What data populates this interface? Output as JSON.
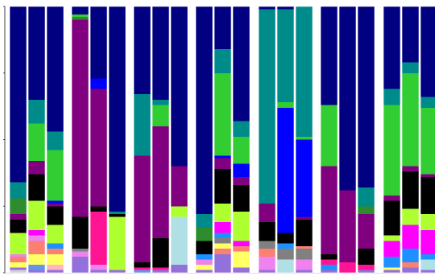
{
  "chart_data": {
    "type": "bar",
    "stacked": true,
    "normalized": true,
    "ylim": [
      0,
      1
    ],
    "grid": false,
    "legend": "none",
    "segment_order": [
      "lavender",
      "lightgray",
      "blue-light",
      "pink",
      "violet",
      "salmon",
      "yellow",
      "gray",
      "powderblue",
      "deeppink",
      "magenta",
      "dodgerblue",
      "greenyellow",
      "black",
      "purple",
      "green",
      "lime-green",
      "blue",
      "teal",
      "navy"
    ],
    "colors": {
      "navy": "#000080",
      "teal": "#008b8b",
      "lime-green": "#32cd32",
      "green": "#2e8b2e",
      "purple": "#800080",
      "black": "#000000",
      "greenyellow": "#adff2f",
      "blue": "#0000ff",
      "magenta": "#ff00ff",
      "deeppink": "#ff1493",
      "dodgerblue": "#1e90ff",
      "salmon": "#fa8072",
      "yellow": "#ffff66",
      "violet": "#ee82ee",
      "powderblue": "#b0e0e6",
      "gray": "#808080",
      "pink": "#ffb6c1",
      "lavender": "#9370db",
      "lightgray": "#d3d3d3",
      "blue-light": "#6495ed"
    },
    "groups": [
      {
        "bars": [
          [
            [
              "lightgray",
              0.01
            ],
            [
              "lavender",
              0.01
            ],
            [
              "yellow",
              0.02
            ],
            [
              "salmon",
              0.02
            ],
            [
              "violet",
              0.01
            ],
            [
              "greenyellow",
              0.08
            ],
            [
              "black",
              0.05
            ],
            [
              "purple",
              0.02
            ],
            [
              "green",
              0.06
            ],
            [
              "teal",
              0.06
            ],
            [
              "navy",
              0.66
            ]
          ],
          [
            [
              "lavender",
              0.01
            ],
            [
              "blue-light",
              0.02
            ],
            [
              "yellow",
              0.04
            ],
            [
              "salmon",
              0.05
            ],
            [
              "violet",
              0.02
            ],
            [
              "magenta",
              0.02
            ],
            [
              "greenyellow",
              0.11
            ],
            [
              "black",
              0.1
            ],
            [
              "purple",
              0.05
            ],
            [
              "lime-green",
              0.14
            ],
            [
              "teal",
              0.09
            ],
            [
              "navy",
              0.35
            ]
          ],
          [
            [
              "lavender",
              0.01
            ],
            [
              "pink",
              0.02
            ],
            [
              "yellow",
              0.04
            ],
            [
              "salmon",
              0.02
            ],
            [
              "dodgerblue",
              0.02
            ],
            [
              "greenyellow",
              0.07
            ],
            [
              "black",
              0.07
            ],
            [
              "purple",
              0.01
            ],
            [
              "blue",
              0.01
            ],
            [
              "lime-green",
              0.19
            ],
            [
              "teal",
              0.07
            ],
            [
              "navy",
              0.47
            ]
          ]
        ]
      },
      {
        "bars": [
          [
            [
              "lavender",
              0.06
            ],
            [
              "violet",
              0.02
            ],
            [
              "gray",
              0.01
            ],
            [
              "black",
              0.12
            ],
            [
              "purple",
              0.74
            ],
            [
              "green",
              0.01
            ],
            [
              "lime-green",
              0.01
            ],
            [
              "navy",
              0.03
            ]
          ],
          [
            [
              "lavender",
              0.01
            ],
            [
              "violet",
              0.02
            ],
            [
              "deeppink",
              0.2
            ],
            [
              "black",
              0.02
            ],
            [
              "purple",
              0.44
            ],
            [
              "blue",
              0.04
            ],
            [
              "navy",
              0.27
            ]
          ],
          [
            [
              "lavender",
              0.01
            ],
            [
              "greenyellow",
              0.2
            ],
            [
              "black",
              0.01
            ],
            [
              "teal",
              0.01
            ],
            [
              "navy",
              0.77
            ]
          ]
        ]
      },
      {
        "bars": [
          [
            [
              "blue-light",
              0.01
            ],
            [
              "deeppink",
              0.01
            ],
            [
              "black",
              0.02
            ],
            [
              "purple",
              0.4
            ],
            [
              "teal",
              0.23
            ],
            [
              "navy",
              0.33
            ]
          ],
          [
            [
              "lavender",
              0.01
            ],
            [
              "deeppink",
              0.01
            ],
            [
              "black",
              0.11
            ],
            [
              "purple",
              0.42
            ],
            [
              "lime-green",
              0.08
            ],
            [
              "teal",
              0.02
            ],
            [
              "navy",
              0.35
            ]
          ],
          [
            [
              "lavender",
              0.03
            ],
            [
              "powderblue",
              0.18
            ],
            [
              "greenyellow",
              0.04
            ],
            [
              "purple",
              0.15
            ],
            [
              "navy",
              0.6
            ]
          ]
        ]
      },
      {
        "bars": [
          [
            [
              "lavender",
              0.01
            ],
            [
              "yellow",
              0.02
            ],
            [
              "violet",
              0.02
            ],
            [
              "dodgerblue",
              0.02
            ],
            [
              "black",
              0.05
            ],
            [
              "green",
              0.05
            ],
            [
              "teal",
              0.05
            ],
            [
              "navy",
              0.78
            ]
          ],
          [
            [
              "lavender",
              0.07
            ],
            [
              "salmon",
              0.02
            ],
            [
              "yellow",
              0.02
            ],
            [
              "gray",
              0.02
            ],
            [
              "dodgerblue",
              0.02
            ],
            [
              "magenta",
              0.04
            ],
            [
              "greenyellow",
              0.07
            ],
            [
              "black",
              0.13
            ],
            [
              "purple",
              0.04
            ],
            [
              "blue",
              0.01
            ],
            [
              "lime-green",
              0.31
            ],
            [
              "teal",
              0.09
            ],
            [
              "navy",
              0.16
            ]
          ],
          [
            [
              "lavender",
              0.02
            ],
            [
              "yellow",
              0.06
            ],
            [
              "salmon",
              0.02
            ],
            [
              "magenta",
              0.02
            ],
            [
              "greenyellow",
              0.11
            ],
            [
              "black",
              0.1
            ],
            [
              "purple",
              0.03
            ],
            [
              "blue",
              0.05
            ],
            [
              "lime-green",
              0.1
            ],
            [
              "teal",
              0.06
            ],
            [
              "navy",
              0.43
            ]
          ]
        ]
      },
      {
        "bars": [
          [
            [
              "lavender",
              0.01
            ],
            [
              "violet",
              0.05
            ],
            [
              "salmon",
              0.03
            ],
            [
              "gray",
              0.03
            ],
            [
              "black",
              0.07
            ],
            [
              "purple",
              0.07
            ],
            [
              "teal",
              0.73
            ],
            [
              "navy",
              0.01
            ]
          ],
          [
            [
              "powderblue",
              0.05
            ],
            [
              "gray",
              0.04
            ],
            [
              "dodgerblue",
              0.02
            ],
            [
              "black",
              0.04
            ],
            [
              "blue",
              0.47
            ],
            [
              "lime-green",
              0.02
            ],
            [
              "teal",
              0.35
            ],
            [
              "navy",
              0.01
            ]
          ],
          [
            [
              "lavender",
              0.01
            ],
            [
              "violet",
              0.04
            ],
            [
              "gray",
              0.04
            ],
            [
              "salmon",
              0.01
            ],
            [
              "black",
              0.1
            ],
            [
              "purple",
              0.01
            ],
            [
              "blue",
              0.29
            ],
            [
              "lime-green",
              0.01
            ],
            [
              "teal",
              0.49
            ]
          ]
        ]
      },
      {
        "bars": [
          [
            [
              "lavender",
              0.01
            ],
            [
              "dodgerblue",
              0.02
            ],
            [
              "deeppink",
              0.02
            ],
            [
              "black",
              0.02
            ],
            [
              "purple",
              0.33
            ],
            [
              "lime-green",
              0.23
            ],
            [
              "navy",
              0.37
            ]
          ],
          [
            [
              "deeppink",
              0.04
            ],
            [
              "purple",
              0.27
            ],
            [
              "navy",
              0.69
            ]
          ],
          [
            [
              "lavender",
              0.01
            ],
            [
              "deeppink",
              0.02
            ],
            [
              "black",
              0.06
            ],
            [
              "purple",
              0.13
            ],
            [
              "green",
              0.03
            ],
            [
              "teal",
              0.07
            ],
            [
              "navy",
              0.68
            ]
          ]
        ]
      },
      {
        "bars": [
          [
            [
              "lavender",
              0.01
            ],
            [
              "yellow",
              0.01
            ],
            [
              "dodgerblue",
              0.04
            ],
            [
              "magenta",
              0.06
            ],
            [
              "greenyellow",
              0.02
            ],
            [
              "black",
              0.13
            ],
            [
              "purple",
              0.02
            ],
            [
              "lime-green",
              0.34
            ],
            [
              "teal",
              0.06
            ],
            [
              "navy",
              0.31
            ]
          ],
          [
            [
              "lavender",
              0.02
            ],
            [
              "salmon",
              0.02
            ],
            [
              "dodgerblue",
              0.05
            ],
            [
              "magenta",
              0.09
            ],
            [
              "greenyellow",
              0.06
            ],
            [
              "black",
              0.14
            ],
            [
              "purple",
              0.02
            ],
            [
              "lime-green",
              0.35
            ],
            [
              "teal",
              0.04
            ],
            [
              "navy",
              0.21
            ]
          ],
          [
            [
              "lavender",
              0.01
            ],
            [
              "powderblue",
              0.04
            ],
            [
              "dodgerblue",
              0.02
            ],
            [
              "magenta",
              0.09
            ],
            [
              "greenyellow",
              0.06
            ],
            [
              "black",
              0.14
            ],
            [
              "purple",
              0.01
            ],
            [
              "lime-green",
              0.25
            ],
            [
              "teal",
              0.04
            ],
            [
              "navy",
              0.34
            ]
          ]
        ]
      }
    ]
  }
}
